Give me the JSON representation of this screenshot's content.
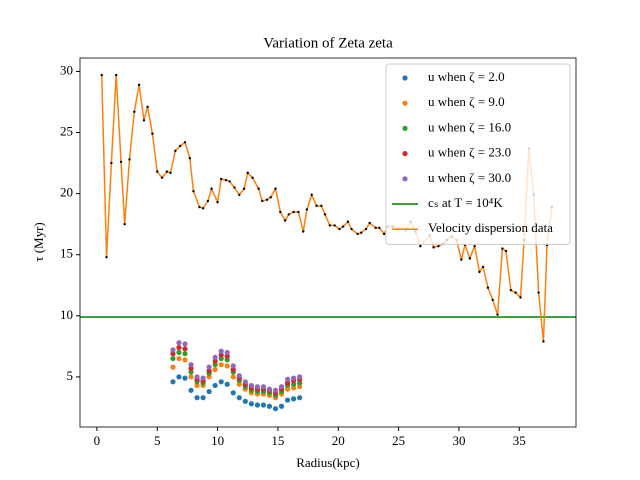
{
  "chart_data": {
    "type": "scatter",
    "title": "Variation of Zeta zeta",
    "xlabel": "Radius(kpc)",
    "ylabel": "τ (Myr)",
    "xlim": [
      -1.4,
      39.7
    ],
    "ylim": [
      0.9,
      31.1
    ],
    "xticks": [
      0,
      5,
      10,
      15,
      20,
      25,
      30,
      35
    ],
    "yticks": [
      5,
      10,
      15,
      20,
      25,
      30
    ],
    "legend": "upper right",
    "series": [
      {
        "name": "u when ζ = 2.0",
        "type": "scatter",
        "color": "#1f77b4",
        "x": [
          6.3,
          6.8,
          7.3,
          7.8,
          8.3,
          8.8,
          9.3,
          9.8,
          10.3,
          10.8,
          11.3,
          11.8,
          12.3,
          12.8,
          13.3,
          13.8,
          14.3,
          14.8,
          15.3,
          15.8,
          16.3,
          16.8
        ],
        "values": [
          4.6,
          5.0,
          4.9,
          3.9,
          3.3,
          3.3,
          3.8,
          4.3,
          4.6,
          4.4,
          3.7,
          3.3,
          3.0,
          2.8,
          2.7,
          2.7,
          2.6,
          2.4,
          2.6,
          3.1,
          3.2,
          3.3
        ]
      },
      {
        "name": "u when ζ = 9.0",
        "type": "scatter",
        "color": "#ff7f0e",
        "x": [
          6.3,
          6.8,
          7.3,
          7.8,
          8.3,
          8.8,
          9.3,
          9.8,
          10.3,
          10.8,
          11.3,
          11.8,
          12.3,
          12.8,
          13.3,
          13.8,
          14.3,
          14.8,
          15.3,
          15.8,
          16.3,
          16.8
        ],
        "values": [
          5.8,
          6.5,
          6.4,
          5.0,
          4.3,
          4.3,
          5.0,
          5.6,
          6.0,
          5.9,
          5.0,
          4.4,
          4.0,
          3.7,
          3.6,
          3.6,
          3.5,
          3.3,
          3.6,
          4.0,
          4.1,
          4.2
        ]
      },
      {
        "name": "u when ζ = 16.0",
        "type": "scatter",
        "color": "#2ca02c",
        "x": [
          6.3,
          6.8,
          7.3,
          7.8,
          8.3,
          8.8,
          9.3,
          9.8,
          10.3,
          10.8,
          11.3,
          11.8,
          12.3,
          12.8,
          13.3,
          13.8,
          14.3,
          14.8,
          15.3,
          15.8,
          16.3,
          16.8
        ],
        "values": [
          6.5,
          7.0,
          6.9,
          5.4,
          4.6,
          4.5,
          5.3,
          6.0,
          6.5,
          6.4,
          5.4,
          4.7,
          4.2,
          3.9,
          3.8,
          3.8,
          3.7,
          3.5,
          3.8,
          4.3,
          4.4,
          4.5
        ]
      },
      {
        "name": "u when ζ = 23.0",
        "type": "scatter",
        "color": "#d62728",
        "x": [
          6.3,
          6.8,
          7.3,
          7.8,
          8.3,
          8.8,
          9.3,
          9.8,
          10.3,
          10.8,
          11.3,
          11.8,
          12.3,
          12.8,
          13.3,
          13.8,
          14.3,
          14.8,
          15.3,
          15.8,
          16.3,
          16.8
        ],
        "values": [
          6.9,
          7.4,
          7.3,
          5.7,
          4.8,
          4.7,
          5.5,
          6.3,
          6.8,
          6.7,
          5.6,
          4.9,
          4.4,
          4.1,
          4.0,
          4.0,
          3.9,
          3.7,
          4.0,
          4.5,
          4.7,
          4.8
        ]
      },
      {
        "name": "u when ζ = 30.0",
        "type": "scatter",
        "color": "#9467bd",
        "x": [
          6.3,
          6.8,
          7.3,
          7.8,
          8.3,
          8.8,
          9.3,
          9.8,
          10.3,
          10.8,
          11.3,
          11.8,
          12.3,
          12.8,
          13.3,
          13.8,
          14.3,
          14.8,
          15.3,
          15.8,
          16.3,
          16.8
        ],
        "values": [
          7.2,
          7.8,
          7.7,
          6.0,
          5.0,
          4.9,
          5.8,
          6.6,
          7.1,
          7.0,
          5.9,
          5.1,
          4.6,
          4.3,
          4.2,
          4.2,
          4.0,
          3.9,
          4.2,
          4.8,
          4.9,
          5.0
        ]
      },
      {
        "name": "cₛ at T = 10⁴K",
        "type": "hline",
        "color": "#008000",
        "values": [
          9.9
        ]
      },
      {
        "name": "Velocity dispersion data",
        "type": "line",
        "color": "#ff7f0e",
        "marker_color": "#000000",
        "x": [
          0.4,
          0.8,
          1.2,
          1.6,
          2.0,
          2.3,
          2.7,
          3.1,
          3.5,
          3.9,
          4.2,
          4.6,
          5.0,
          5.4,
          5.8,
          6.1,
          6.5,
          6.9,
          7.3,
          7.7,
          8.0,
          8.5,
          8.8,
          9.2,
          9.5,
          10.0,
          10.3,
          10.7,
          11.0,
          11.4,
          11.8,
          12.2,
          12.5,
          12.9,
          13.4,
          13.7,
          14.1,
          14.4,
          14.8,
          15.2,
          15.6,
          15.9,
          16.3,
          16.7,
          17.1,
          17.4,
          17.8,
          18.2,
          18.6,
          18.9,
          19.3,
          19.7,
          20.1,
          20.4,
          20.8,
          21.1,
          21.6,
          21.9,
          22.3,
          22.6,
          23.1,
          23.4,
          23.8,
          24.1,
          24.5,
          25.6,
          26.0,
          26.4,
          26.8,
          27.6,
          27.9,
          28.3,
          28.7,
          29.0,
          29.4,
          29.8,
          30.2,
          30.5,
          30.9,
          31.3,
          31.7,
          32.0,
          32.4,
          32.8,
          33.2,
          33.6,
          33.9,
          34.3,
          34.7,
          35.1,
          35.4,
          35.8,
          36.2,
          36.6,
          37.0,
          37.3,
          37.7
        ],
        "values": [
          29.7,
          14.8,
          22.5,
          29.7,
          22.6,
          17.5,
          22.8,
          26.7,
          28.9,
          26.0,
          27.1,
          24.9,
          21.8,
          21.3,
          21.8,
          21.7,
          23.5,
          23.9,
          24.2,
          22.9,
          20.2,
          18.9,
          18.8,
          19.4,
          20.4,
          19.3,
          21.2,
          21.1,
          21.0,
          20.5,
          19.9,
          20.4,
          21.7,
          21.3,
          20.4,
          19.4,
          19.5,
          19.7,
          20.4,
          18.5,
          17.8,
          18.3,
          18.5,
          18.5,
          16.9,
          18.7,
          19.9,
          19.0,
          19.0,
          18.3,
          17.4,
          17.4,
          17.1,
          17.3,
          17.7,
          17.1,
          16.7,
          16.8,
          17.1,
          17.6,
          17.2,
          17.2,
          16.7,
          17.3,
          17.3,
          17.0,
          17.7,
          16.9,
          15.7,
          16.6,
          15.6,
          15.7,
          15.9,
          16.2,
          16.5,
          16.2,
          14.6,
          15.8,
          14.7,
          15.7,
          13.6,
          14.0,
          12.3,
          11.3,
          10.1,
          15.5,
          15.3,
          12.1,
          11.9,
          11.5,
          16.2,
          23.7,
          19.9,
          11.9,
          7.9,
          15.8,
          18.9
        ]
      }
    ]
  }
}
